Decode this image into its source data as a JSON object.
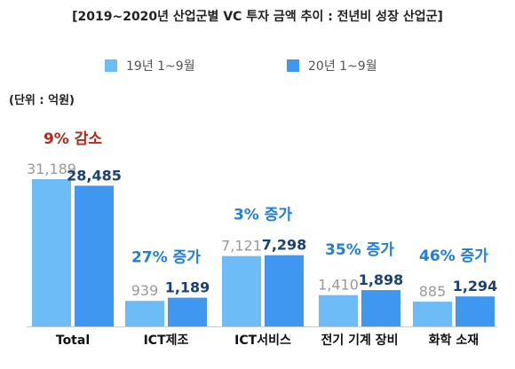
{
  "colors": {
    "series19": "#6ebcf7",
    "series20": "#3f97ef",
    "decrease": "#b5291f",
    "increase": "#1e7ee2",
    "category": "#111111",
    "value19": "#9a9a9a",
    "value20": "#1a3f7a",
    "baseline": "#c8c8c8"
  },
  "unit_label": "(단위 : 억원)",
  "chart_data": {
    "type": "bar",
    "title": "[2019~2020년 산업군별 VC 투자 금액 추이 : 전년비 성장 산업군]",
    "categories": [
      "Total",
      "ICT제조",
      "ICT서비스",
      "전기 기계 장비",
      "화학 소재"
    ],
    "series": [
      {
        "name": "19년 1~9월",
        "values": [
          31189,
          939,
          7121,
          1410,
          885
        ],
        "labels": [
          "31,189",
          "939",
          "7,121",
          "1,410",
          "885"
        ]
      },
      {
        "name": "20년 1~9월",
        "values": [
          28485,
          1189,
          7298,
          1898,
          1294
        ],
        "labels": [
          "28,485",
          "1,189",
          "7,298",
          "1,898",
          "1,294"
        ]
      }
    ],
    "annotations": [
      "9% 감소",
      "27% 증가",
      "3% 증가",
      "35% 증가",
      "46% 증가"
    ],
    "annotation_types": [
      "decrease",
      "increase",
      "increase",
      "increase",
      "increase"
    ],
    "xlabel": "",
    "ylabel": "",
    "legend_position": "top",
    "grid": false
  }
}
